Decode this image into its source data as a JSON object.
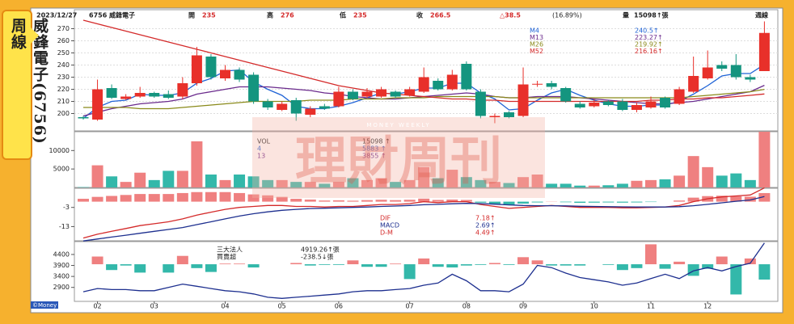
{
  "side_label": "威鋒電子(6756)周線",
  "header": {
    "date": "2023/12/27",
    "stock": "6756 威鋒電子",
    "items": [
      {
        "label": "開",
        "value": "235"
      },
      {
        "label": "高",
        "value": "276"
      },
      {
        "label": "低",
        "value": "235"
      },
      {
        "label": "收",
        "value": "266.5"
      }
    ],
    "change": "△38.5",
    "pct": "(16.89%)",
    "volume_label": "量",
    "volume": "15098↑張",
    "period": "週線"
  },
  "watermark": {
    "text": "理財周刊",
    "sub": "MONEY WEEKLY"
  },
  "footer": "©Money",
  "chart_data": [
    {
      "type": "candlestick",
      "up_color": "#e8302a",
      "down_color": "#14957f",
      "ylim": [
        187,
        277
      ],
      "yticks": [
        200,
        210,
        220,
        230,
        240,
        250,
        260,
        270
      ],
      "grid": true,
      "candles": {
        "open": [
          197,
          195,
          221,
          212,
          214,
          217,
          216,
          214,
          225,
          247,
          229,
          236,
          232,
          210,
          203,
          211,
          199,
          206,
          206,
          218,
          214,
          214,
          218,
          215,
          218,
          227,
          220,
          241,
          218,
          197,
          201,
          198,
          224,
          225,
          221,
          208,
          206,
          210,
          210,
          203,
          205,
          213,
          208,
          218,
          229,
          240,
          240,
          230,
          235
        ],
        "high": [
          198,
          228,
          224,
          216,
          222,
          218,
          219,
          230,
          255,
          249,
          240,
          238,
          234,
          212,
          210,
          213,
          206,
          208,
          222,
          220,
          221,
          222,
          219,
          222,
          238,
          229,
          236,
          243,
          220,
          200,
          202,
          238,
          227,
          227,
          222,
          210,
          212,
          211,
          212,
          209,
          214,
          214,
          222,
          247,
          252,
          243,
          249,
          232,
          276
        ],
        "low": [
          195,
          194,
          212,
          211,
          213,
          213,
          212,
          212,
          223,
          228,
          227,
          226,
          208,
          203,
          202,
          194,
          197,
          203,
          205,
          211,
          213,
          213,
          213,
          214,
          217,
          219,
          219,
          219,
          196,
          192,
          196,
          197,
          222,
          220,
          209,
          204,
          205,
          206,
          202,
          201,
          204,
          204,
          207,
          217,
          228,
          235,
          228,
          226,
          235
        ],
        "close": [
          196,
          220,
          213,
          214,
          217,
          214,
          213,
          225,
          248,
          230,
          236,
          228,
          210,
          205,
          208,
          200,
          204,
          204,
          218,
          212,
          218,
          220,
          214,
          220,
          230,
          220,
          232,
          220,
          198,
          198,
          197,
          224,
          224.5,
          222,
          210,
          205,
          209,
          207,
          203,
          207,
          210,
          205,
          220,
          231,
          238,
          237,
          230,
          228,
          266.5
        ]
      },
      "lines": [
        {
          "name": "M4",
          "color": "#1f63d6",
          "legend_value": "240.5↑",
          "values": [
            196,
            205,
            210,
            211,
            216,
            215,
            215,
            217,
            225,
            229,
            235,
            236,
            226,
            220,
            215,
            206,
            204,
            204,
            206,
            209,
            213,
            217,
            216,
            218,
            221,
            221,
            225,
            225,
            217,
            212,
            203,
            204,
            211,
            217,
            220,
            215,
            211,
            208,
            206,
            206,
            207,
            207,
            210,
            216,
            223,
            231,
            233,
            233,
            240.5
          ]
        },
        {
          "name": "M13",
          "color": "#6a2a8c",
          "legend_value": "223.27↑",
          "values": [
            198,
            201,
            204,
            206,
            208,
            209,
            210,
            212,
            216,
            218,
            220,
            222,
            222,
            222,
            221,
            220,
            219,
            217,
            216,
            214,
            213,
            212,
            212,
            213,
            214,
            215,
            216,
            217,
            216,
            214,
            213,
            213,
            214,
            214,
            214,
            213,
            212,
            211,
            210,
            209,
            208,
            208,
            209,
            210,
            212,
            214,
            216,
            218,
            223.27
          ]
        },
        {
          "name": "M26",
          "color": "#8a8a1a",
          "legend_value": "219.92↑",
          "values": [
            205,
            205,
            205,
            205,
            204,
            204,
            204,
            205,
            206,
            207,
            208,
            209,
            210,
            210,
            210,
            210,
            211,
            211,
            211,
            212,
            212,
            212,
            213,
            213,
            213,
            214,
            214,
            214,
            214,
            214,
            213,
            213,
            213,
            213,
            213,
            213,
            213,
            213,
            213,
            213,
            213,
            213,
            213,
            214,
            215,
            216,
            217,
            218,
            219.92
          ]
        },
        {
          "name": "M52",
          "color": "#d42a2a",
          "legend_value": "216.16↑",
          "values": [
            277,
            274,
            271,
            268,
            265,
            262,
            259,
            256,
            253,
            250,
            247,
            244,
            241,
            238,
            235,
            232,
            229,
            226,
            223,
            221,
            219,
            217,
            216,
            215,
            214,
            213,
            212,
            212,
            211,
            211,
            210,
            210,
            210,
            210,
            210,
            210,
            210,
            210,
            210,
            210,
            211,
            211,
            212,
            212,
            213,
            213,
            214,
            215,
            216.16
          ]
        }
      ]
    },
    {
      "type": "volume",
      "up_color": "#ef8080",
      "down_color": "#33b8aa",
      "ylim": [
        0,
        15100
      ],
      "yticks": [
        5000,
        10000
      ],
      "values": [
        100,
        6000,
        3000,
        1500,
        4000,
        2000,
        4500,
        4500,
        12500,
        3500,
        2000,
        3500,
        3000,
        2000,
        2000,
        1500,
        1500,
        1000,
        1500,
        2500,
        2000,
        2500,
        1500,
        2000,
        5500,
        2500,
        4800,
        2800,
        2000,
        1500,
        1200,
        2800,
        3500,
        1000,
        1000,
        500,
        500,
        600,
        1000,
        1800,
        2000,
        2200,
        3200,
        8500,
        5500,
        3200,
        3800,
        2000,
        15098
      ],
      "legend": [
        {
          "name": "VOL",
          "value": "15098 ↑",
          "color": "#222222"
        },
        {
          "name": "4",
          "value": "5883 ↑",
          "color": "#1f63d6"
        },
        {
          "name": "13",
          "value": "3855 ↑",
          "color": "#6a2a8c"
        }
      ]
    },
    {
      "type": "macd",
      "ylim": [
        -20,
        7
      ],
      "yticks": [
        -3,
        -13
      ],
      "series": [
        {
          "name": "DIF",
          "color": "#d42a2a",
          "legend_value": "7.18↑",
          "values": [
            -19,
            -17,
            -15.5,
            -14,
            -12.5,
            -11.5,
            -10.5,
            -9,
            -7,
            -5.5,
            -4,
            -3,
            -2.5,
            -2,
            -2,
            -2.5,
            -2.5,
            -2.8,
            -2.5,
            -2.5,
            -2,
            -1.5,
            -1.5,
            -1,
            0,
            -0.5,
            0,
            0,
            -1.5,
            -2.5,
            -3.5,
            -3,
            -2.5,
            -2,
            -2.5,
            -3,
            -3,
            -3,
            -3.2,
            -3.2,
            -3,
            -2.8,
            -2,
            0,
            1.5,
            2.5,
            3,
            3.5,
            7.18
          ]
        },
        {
          "name": "MACD",
          "color": "#1d2f8f",
          "legend_value": "2.69↑",
          "values": [
            -20.5,
            -19.5,
            -18.5,
            -17.5,
            -16.5,
            -15.5,
            -14.5,
            -13.5,
            -12,
            -10.5,
            -9,
            -7.5,
            -6.3,
            -5.3,
            -4.5,
            -4,
            -3.6,
            -3.4,
            -3.2,
            -3,
            -2.8,
            -2.5,
            -2.3,
            -2,
            -1.6,
            -1.4,
            -1.1,
            -0.9,
            -1,
            -1.3,
            -1.7,
            -2,
            -2.1,
            -2.1,
            -2.2,
            -2.4,
            -2.5,
            -2.6,
            -2.7,
            -2.8,
            -2.8,
            -2.8,
            -2.6,
            -2.1,
            -1.4,
            -0.6,
            0.2,
            0.9,
            2.69
          ]
        },
        {
          "name": "D-M",
          "color": "#ef8080",
          "down_color": "#33b8aa",
          "legend_value": "4.49↑",
          "values": [
            1.5,
            2.5,
            3,
            3.5,
            4,
            4,
            4,
            4.5,
            5,
            5,
            5,
            4.5,
            3.8,
            3.3,
            2.5,
            1.5,
            1.1,
            0.6,
            0.7,
            0.5,
            0.8,
            1,
            0.8,
            1,
            1.6,
            0.9,
            1.1,
            0.9,
            -0.5,
            -1.2,
            -1.8,
            -1,
            -0.4,
            0.1,
            -0.3,
            -0.6,
            -0.5,
            -0.4,
            -0.5,
            -0.4,
            -0.2,
            0,
            0.6,
            2.1,
            2.9,
            3.1,
            2.8,
            2.6,
            4.49
          ]
        }
      ]
    },
    {
      "type": "institutional",
      "ylim": [
        2300,
        4950
      ],
      "yticks": [
        2900,
        3400,
        3900,
        4400
      ],
      "y2lim": [
        -565,
        340
      ],
      "categories": [
        null,
        "02",
        null,
        null,
        null,
        "03",
        null,
        null,
        null,
        null,
        "04",
        null,
        null,
        null,
        "05",
        null,
        null,
        null,
        "06",
        null,
        null,
        null,
        null,
        "07",
        null,
        null,
        null,
        "08",
        null,
        null,
        null,
        "09",
        null,
        null,
        null,
        null,
        "10",
        null,
        null,
        null,
        "11",
        null,
        null,
        null,
        "12",
        null,
        null,
        null,
        null
      ],
      "series": [
        {
          "name": "三大法人",
          "color": "#1d2f8f",
          "legend_value": "4919.26↑張",
          "values": [
            2700,
            2850,
            2800,
            2800,
            2750,
            2750,
            2900,
            3050,
            2950,
            2850,
            2750,
            2700,
            2600,
            2450,
            2400,
            2450,
            2500,
            2550,
            2600,
            2700,
            2750,
            2750,
            2800,
            2850,
            3000,
            3100,
            3500,
            3200,
            2750,
            2750,
            2700,
            3050,
            3900,
            3800,
            3550,
            3350,
            3250,
            3150,
            3000,
            3100,
            3300,
            3500,
            3300,
            3650,
            3800,
            3650,
            3850,
            4000,
            4919.26
          ]
        },
        {
          "name": "買賣超",
          "axis": "y2",
          "color": "#ef8080",
          "down_color": "#33b8aa",
          "legend_value": "-238.5↓張",
          "values": [
            0,
            120,
            -90,
            -20,
            -130,
            0,
            -130,
            130,
            -60,
            -120,
            10,
            10,
            -50,
            0,
            0,
            20,
            -20,
            -10,
            -10,
            60,
            -40,
            -40,
            10,
            -230,
            90,
            -40,
            -50,
            -20,
            -10,
            20,
            -10,
            110,
            60,
            -20,
            -20,
            -20,
            0,
            -10,
            -90,
            -60,
            310,
            -70,
            40,
            -180,
            -70,
            120,
            -470,
            90,
            -238.5
          ]
        }
      ]
    }
  ]
}
